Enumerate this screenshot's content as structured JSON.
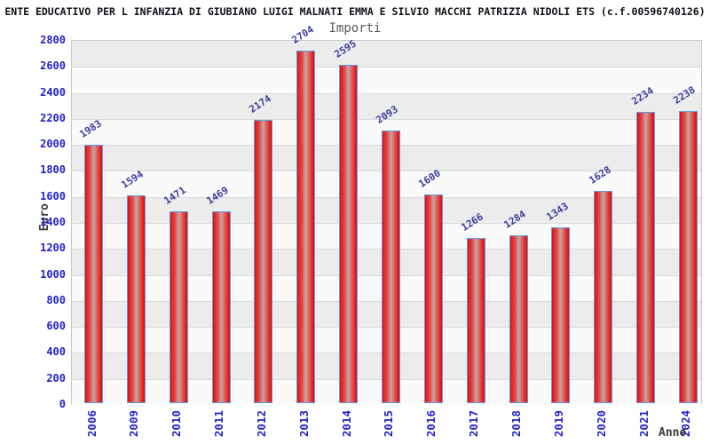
{
  "header": {
    "title": "ENTE EDUCATIVO PER L INFANZIA DI GIUBIANO LUIGI MALNATI EMMA E SILVIO MACCHI PATRIZIA NIDOLI ETS (c.f.00596740126)",
    "subtitle": "Importi"
  },
  "chart_data": {
    "type": "bar",
    "title": "Importi",
    "xlabel": "Anno",
    "ylabel": "Euro",
    "categories": [
      "2006",
      "2009",
      "2010",
      "2011",
      "2012",
      "2013",
      "2014",
      "2015",
      "2016",
      "2017",
      "2018",
      "2019",
      "2020",
      "2021",
      "2024"
    ],
    "values": [
      1983,
      1594,
      1471,
      1469,
      2174,
      2704,
      2595,
      2093,
      1600,
      1266,
      1284,
      1343,
      1628,
      2234,
      2238
    ],
    "ylim": [
      0,
      2800
    ],
    "ytick_step": 200,
    "grid": "horizontal-bands",
    "legend_position": "none",
    "colors": {
      "bar_fill": "#e81f1f",
      "bar_highlight": "#c9a0a0",
      "bar_border": "#5e9fe0",
      "axis_tick_label": "#2222cc",
      "value_label": "#3c3c9e",
      "axis_title": "#3a3a3a",
      "chart_title": "#101018",
      "chart_subtitle": "#5a5a5a",
      "band_dark": "#ececec",
      "band_light": "#fafafa",
      "gridline": "#d9d9d9"
    }
  }
}
